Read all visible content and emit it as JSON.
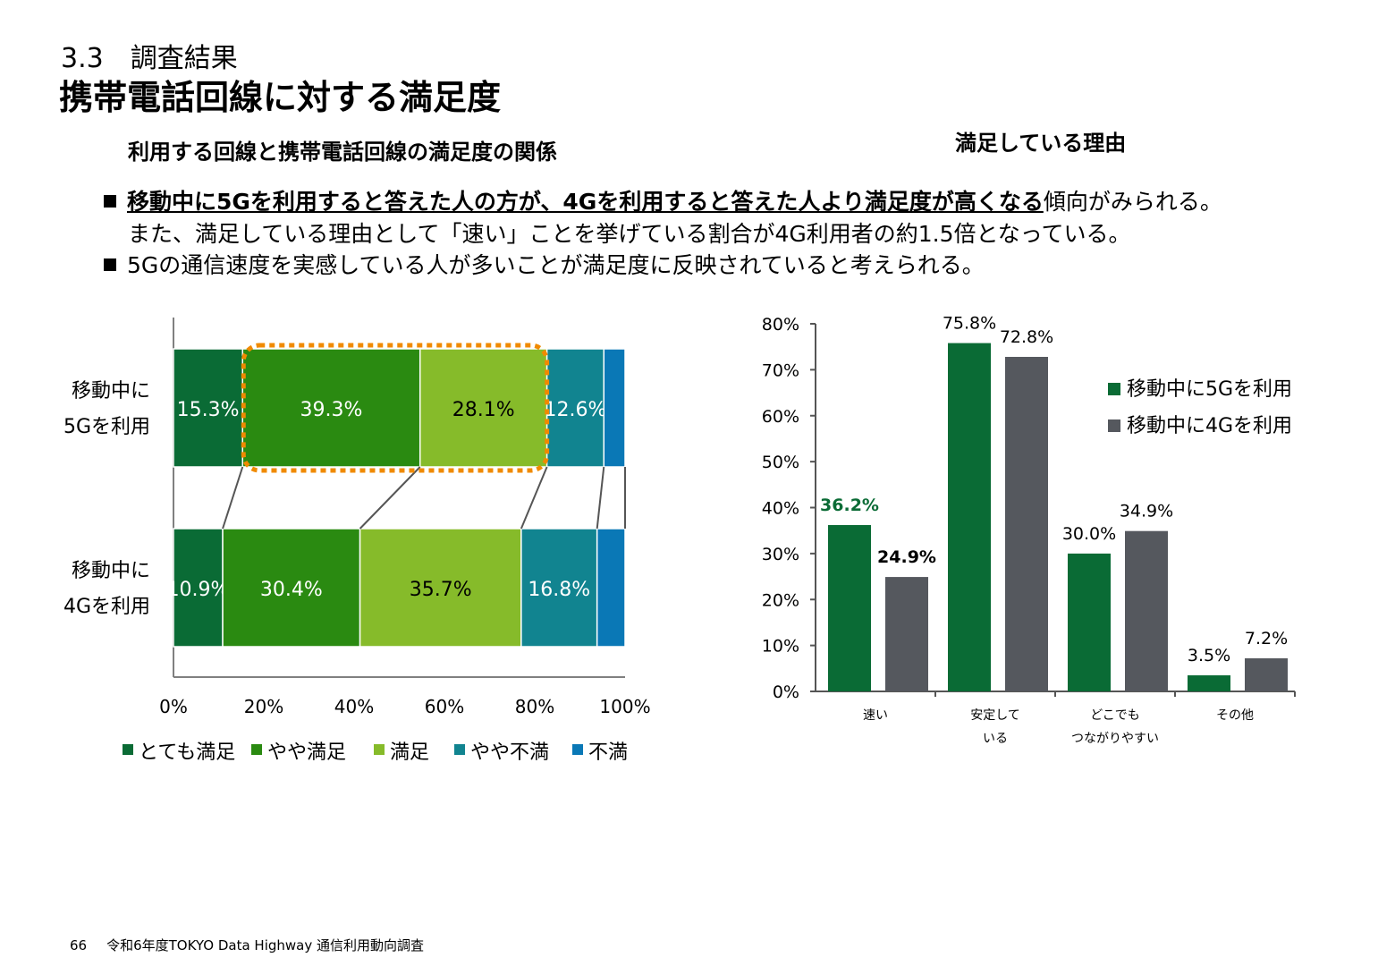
{
  "header": {
    "section": "3.3　調査結果",
    "title": "携帯電話回線に対する満足度",
    "left_subtitle": "利用する回線と携帯電話回線の満足度の関係",
    "right_subtitle": "満足している理由"
  },
  "bullets": {
    "b1_underlined": "移動中に5Gを利用すると答えた人の方が、4Gを利用すると答えた人より満足度が高くなる",
    "b1_rest": "傾向がみられる。",
    "b1_cont": "また、満足している理由として「速い」ことを挙げている割合が4G利用者の約1.5倍となっている。",
    "b2": "5Gの通信速度を実感している人が多いことが満足度に反映されていると考えられる。"
  },
  "footer": {
    "page": "66",
    "text": "令和6年度TOKYO Data Highway 通信利用動向調査"
  },
  "chart_data": [
    {
      "type": "bar",
      "orientation": "horizontal",
      "stacked": true,
      "categories": [
        "移動中に\n5Gを利用",
        "移動中に\n4Gを利用"
      ],
      "category_lines": [
        [
          "移動中に",
          "5Gを利用"
        ],
        [
          "移動中に",
          "4Gを利用"
        ]
      ],
      "series": [
        {
          "name": "とても満足",
          "values": [
            15.3,
            10.9
          ],
          "color": "#0a6b35",
          "label_color": "#ffffff"
        },
        {
          "name": "やや満足",
          "values": [
            39.3,
            30.4
          ],
          "color": "#2a8a11",
          "label_color": "#ffffff"
        },
        {
          "name": "満足",
          "values": [
            28.1,
            35.7
          ],
          "color": "#86bb2a",
          "label_color": "#000000"
        },
        {
          "name": "やや不満",
          "values": [
            12.6,
            16.8
          ],
          "color": "#118490",
          "label_color": "#ffffff"
        },
        {
          "name": "不満",
          "values": [
            4.7,
            6.2
          ],
          "color": "#0a78b6",
          "label_color": "#ffffff"
        }
      ],
      "data_labels": [
        [
          "15.3%",
          "39.3%",
          "28.1%",
          "12.6%",
          ""
        ],
        [
          "10.9%",
          "30.4%",
          "35.7%",
          "16.8%",
          ""
        ]
      ],
      "x_ticks": [
        "0%",
        "20%",
        "40%",
        "60%",
        "80%",
        "100%"
      ],
      "xlim": [
        0,
        100
      ],
      "legend_position": "bottom",
      "highlight": "やや満足 + 満足 (移動中に5Gを利用)",
      "highlight_color": "#f08a00"
    },
    {
      "type": "bar",
      "categories": [
        "速い",
        "安定して\nいる",
        "どこでも\nつながりやすい",
        "その他"
      ],
      "category_lines": [
        [
          "速い"
        ],
        [
          "安定して",
          "いる"
        ],
        [
          "どこでも",
          "つながりやすい"
        ],
        [
          "その他"
        ]
      ],
      "series": [
        {
          "name": "移動中に5Gを利用",
          "values": [
            36.2,
            75.8,
            30.0,
            3.5
          ],
          "color": "#0a6b35"
        },
        {
          "name": "移動中に4Gを利用",
          "values": [
            24.9,
            72.8,
            34.9,
            7.2
          ],
          "color": "#55585e"
        }
      ],
      "data_labels": [
        [
          "36.2%",
          "75.8%",
          "30.0%",
          "3.5%"
        ],
        [
          "24.9%",
          "72.8%",
          "34.9%",
          "7.2%"
        ]
      ],
      "emphasized_labels": {
        "36.2%": "#0a6b35",
        "24.9%": "#000000"
      },
      "y_ticks": [
        "0%",
        "10%",
        "20%",
        "30%",
        "40%",
        "50%",
        "60%",
        "70%",
        "80%"
      ],
      "ylim": [
        0,
        80
      ],
      "legend_position": "right"
    }
  ]
}
